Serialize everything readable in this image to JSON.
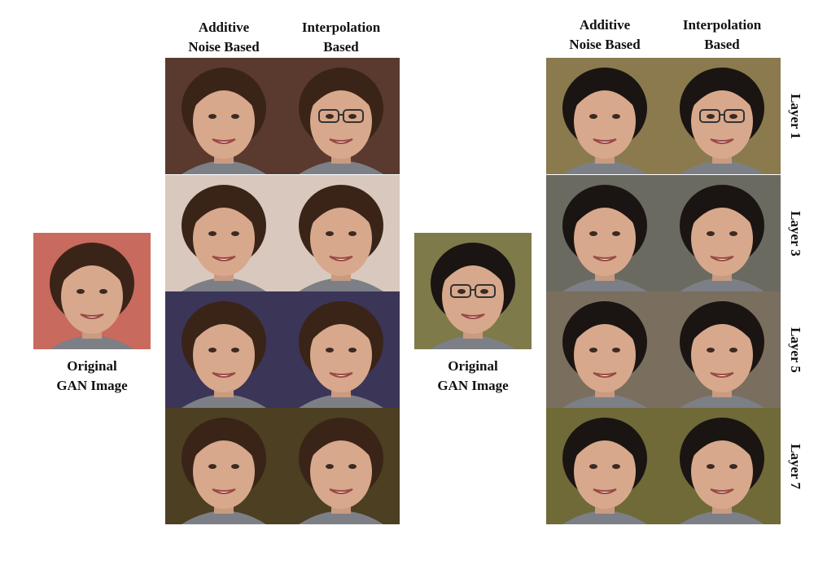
{
  "left_panel": {
    "original_caption": [
      "Original",
      "GAN Image"
    ],
    "column_headers": [
      [
        "Additive",
        "Noise Based"
      ],
      [
        "Interpolation",
        "Based"
      ]
    ],
    "rows": 4,
    "original_bg": "#c96a5e",
    "row_bgs": [
      "#5a3a2e",
      "#d9c8bd",
      "#3b3558",
      "#4c3f22"
    ]
  },
  "right_panel": {
    "original_caption": [
      "Original",
      "GAN Image"
    ],
    "column_headers": [
      [
        "Additive",
        "Noise Based"
      ],
      [
        "Interpolation",
        "Based"
      ]
    ],
    "row_labels": [
      "Layer 1",
      "Layer 3",
      "Layer 5",
      "Layer 7"
    ],
    "original_bg": "#7f7a4a",
    "row_bgs": [
      "#8a7a4e",
      "#6a6a60",
      "#7a6e5e",
      "#6f6a38"
    ]
  }
}
